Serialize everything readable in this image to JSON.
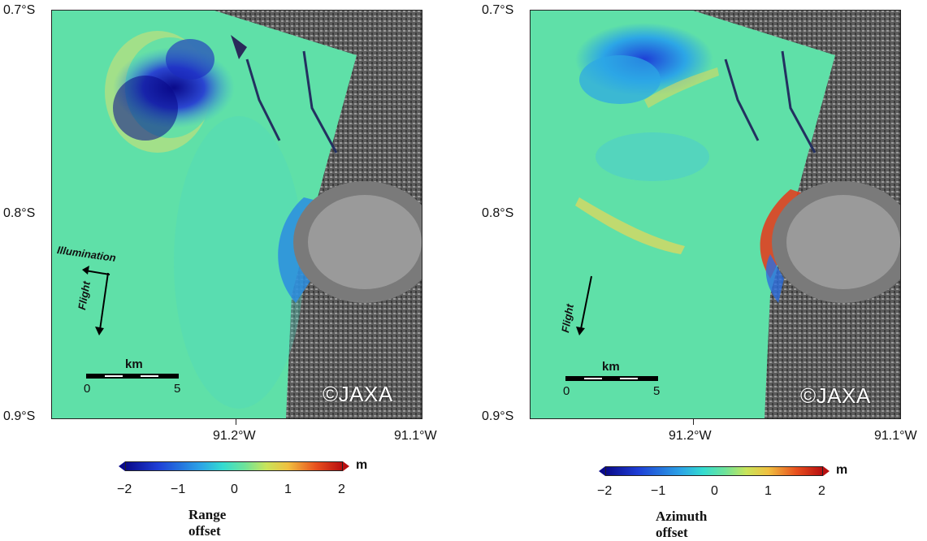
{
  "panels": [
    {
      "id": "range",
      "lat_labels": [
        "0.7°S",
        "0.8°S",
        "0.9°S"
      ],
      "lon_labels": [
        "91.2°W",
        "91.1°W"
      ],
      "arrows": [
        "Illumination",
        "Flight"
      ],
      "scale": {
        "label": "km",
        "start": "0",
        "end": "5"
      },
      "credit": "©JAXA",
      "colorbar": {
        "ticks": [
          "−2",
          "−1",
          "0",
          "1",
          "2"
        ],
        "unit": "m",
        "title": "Range offset"
      }
    },
    {
      "id": "azimuth",
      "lat_labels": [
        "0.7°S",
        "0.8°S",
        "0.9°S"
      ],
      "lon_labels": [
        "91.2°W",
        "91.1°W"
      ],
      "arrows": [
        "Flight"
      ],
      "scale": {
        "label": "km",
        "start": "0",
        "end": "5"
      },
      "credit": "©JAXA",
      "colorbar": {
        "ticks": [
          "−2",
          "−1",
          "0",
          "1",
          "2"
        ],
        "unit": "m",
        "title": "Azimuth offset"
      }
    }
  ],
  "colors": {
    "deep_blue": "#0a0a8a",
    "green": "#6ee39a",
    "red": "#b80f10",
    "background_terrain": "#6e6e6e"
  }
}
